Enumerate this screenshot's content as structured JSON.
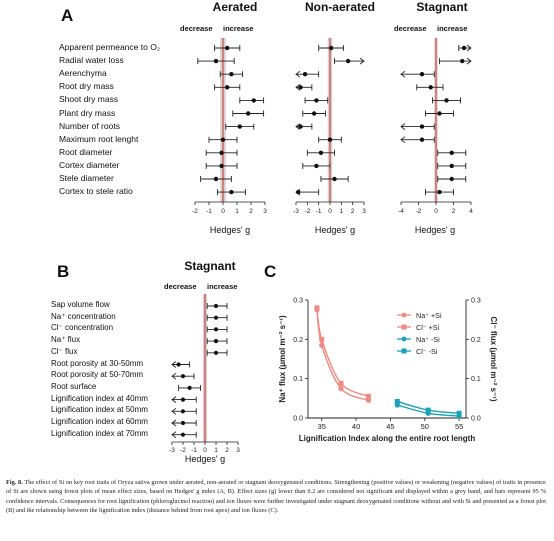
{
  "panel_a": {
    "letter": "A",
    "direction": {
      "decrease": "decrease",
      "increase": "increase"
    },
    "xlabel": "Hedges' g",
    "ticks": [
      "-2",
      "-1",
      "0",
      "1",
      "2",
      "3"
    ],
    "traits": [
      "Apparent permeance to O₂",
      "Radial water loss",
      "Aerenchyma",
      "Root dry mass",
      "Shoot dry mass",
      "Plant dry mass",
      "Number of roots",
      "Maximum root lenght",
      "Root diameter",
      "Cortex diameter",
      "Stele diameter",
      "Cortex to stele ratio"
    ],
    "facets": [
      {
        "title": "Aerated",
        "ticks": [
          "-2",
          "-1",
          "0",
          "1",
          "2",
          "3"
        ],
        "xmin": -2,
        "xmax": 3,
        "rows": [
          {
            "g": 0.3,
            "lo": -0.6,
            "hi": 1.2
          },
          {
            "g": -0.5,
            "lo": -1.8,
            "hi": 0.8
          },
          {
            "g": 0.6,
            "lo": -0.2,
            "hi": 1.4
          },
          {
            "g": 0.3,
            "lo": -0.6,
            "hi": 1.2
          },
          {
            "g": 2.2,
            "lo": 1.2,
            "hi": 2.9
          },
          {
            "g": 1.8,
            "lo": 0.7,
            "hi": 2.9
          },
          {
            "g": 1.2,
            "lo": 0.2,
            "hi": 2.2
          },
          {
            "g": 0.0,
            "lo": -1.0,
            "hi": 1.0
          },
          {
            "g": -0.1,
            "lo": -1.2,
            "hi": 1.0
          },
          {
            "g": -0.1,
            "lo": -1.2,
            "hi": 1.0
          },
          {
            "g": -0.5,
            "lo": -1.6,
            "hi": 0.6
          },
          {
            "g": 0.6,
            "lo": -0.4,
            "hi": 1.6
          }
        ]
      },
      {
        "title": "Non-aerated",
        "ticks": [
          "-3",
          "-2",
          "-1",
          "0",
          "1",
          "2",
          "3"
        ],
        "xmin": -3,
        "xmax": 3,
        "rows": [
          {
            "g": 0.1,
            "lo": -1.0,
            "hi": 1.2
          },
          {
            "g": 1.6,
            "lo": 0.4,
            "hi": 3.0
          },
          {
            "g": -2.2,
            "lo": -3.0,
            "hi": -1.0
          },
          {
            "g": -2.6,
            "lo": -3.0,
            "hi": -1.6
          },
          {
            "g": -1.2,
            "lo": -2.2,
            "hi": -0.2
          },
          {
            "g": -1.4,
            "lo": -2.4,
            "hi": -0.4
          },
          {
            "g": -2.6,
            "lo": -3.0,
            "hi": -1.6
          },
          {
            "g": 0.0,
            "lo": -1.0,
            "hi": 1.0
          },
          {
            "g": -0.8,
            "lo": -2.0,
            "hi": 0.4
          },
          {
            "g": -1.2,
            "lo": -2.4,
            "hi": 0.0
          },
          {
            "g": 0.4,
            "lo": -0.8,
            "hi": 1.6
          },
          {
            "g": -2.8,
            "lo": -3.0,
            "hi": -1.0
          }
        ]
      },
      {
        "title": "Stagnant",
        "ticks": [
          "-4",
          "-2",
          "0",
          "2",
          "4"
        ],
        "xmin": -4,
        "xmax": 4,
        "rows": [
          {
            "g": 3.2,
            "lo": 2.6,
            "hi": 4.0
          },
          {
            "g": 3.0,
            "lo": 0.4,
            "hi": 4.0
          },
          {
            "g": -1.6,
            "lo": -4.0,
            "hi": -0.2
          },
          {
            "g": -0.6,
            "lo": -2.2,
            "hi": 0.8
          },
          {
            "g": 1.2,
            "lo": -0.4,
            "hi": 2.8
          },
          {
            "g": 0.4,
            "lo": -1.2,
            "hi": 2.0
          },
          {
            "g": -1.6,
            "lo": -4.0,
            "hi": -0.2
          },
          {
            "g": -1.6,
            "lo": -4.0,
            "hi": -0.2
          },
          {
            "g": 1.8,
            "lo": 0.2,
            "hi": 3.4
          },
          {
            "g": 1.8,
            "lo": 0.2,
            "hi": 3.4
          },
          {
            "g": 1.8,
            "lo": 0.2,
            "hi": 3.4
          },
          {
            "g": 0.4,
            "lo": -1.2,
            "hi": 2.0
          }
        ]
      }
    ]
  },
  "panel_b": {
    "letter": "B",
    "title": "Stagnant",
    "direction": {
      "decrease": "decrease",
      "increase": "increase"
    },
    "xlabel": "Hedges' g",
    "ticks": [
      "-3",
      "-2",
      "-1",
      "0",
      "1",
      "2",
      "3"
    ],
    "xmin": -3,
    "xmax": 3,
    "traits": [
      "Sap volume flow",
      "Na⁺ concentration",
      "Cl⁻ concentration",
      "Na⁺ flux",
      "Cl⁻ flux",
      "Root porosity at 30-50mm",
      "Root porosity at 50-70mm",
      "Root surface",
      "Lignification index at 40mm",
      "Lignification index at 50mm",
      "Lignification index at 60mm",
      "Lignification index at 70mm"
    ],
    "rows": [
      {
        "g": 1.0,
        "lo": 0.2,
        "hi": 2.0
      },
      {
        "g": 1.0,
        "lo": 0.2,
        "hi": 2.0
      },
      {
        "g": 1.0,
        "lo": 0.2,
        "hi": 2.0
      },
      {
        "g": 1.0,
        "lo": 0.2,
        "hi": 2.0
      },
      {
        "g": 1.0,
        "lo": 0.2,
        "hi": 2.0
      },
      {
        "g": -2.4,
        "lo": -3.0,
        "hi": -1.4
      },
      {
        "g": -2.0,
        "lo": -3.0,
        "hi": -1.0
      },
      {
        "g": -1.4,
        "lo": -2.4,
        "hi": -0.4
      },
      {
        "g": -2.0,
        "lo": -3.0,
        "hi": -0.8
      },
      {
        "g": -2.0,
        "lo": -3.0,
        "hi": -0.8
      },
      {
        "g": -2.0,
        "lo": -3.0,
        "hi": -0.8
      },
      {
        "g": -2.0,
        "lo": -3.0,
        "hi": -0.8
      }
    ]
  },
  "panel_c": {
    "letter": "C",
    "xlabel": "Lignification Index along the entire root length",
    "ylabel_left": "Na⁺ flux (μmol m⁻² s⁻¹)",
    "ylabel_right": "Cl⁻ flux (μmol m⁻² s⁻¹)",
    "xticks": [
      "35",
      "40",
      "45",
      "50",
      "55"
    ],
    "yticks_left": [
      "0.0",
      "0.1",
      "0.2",
      "0.3"
    ],
    "yticks_right": [
      "0.0",
      "0.1",
      "0.2",
      "0.3"
    ],
    "xlim": [
      33,
      56
    ],
    "ylim": [
      0,
      0.3
    ],
    "legend": [
      {
        "label": "Na⁺ +Si",
        "marker": "circle",
        "color": "#f08a80"
      },
      {
        "label": "Cl⁻ +Si",
        "marker": "square",
        "color": "#f08a80"
      },
      {
        "label": "Na⁺ -Si",
        "marker": "circle",
        "color": "#1aa3b8"
      },
      {
        "label": "Cl⁻ -Si",
        "marker": "square",
        "color": "#1aa3b8"
      }
    ]
  },
  "chart_data": [
    {
      "type": "scatter",
      "title": "",
      "xlabel": "Lignification Index along the entire root length",
      "ylabel": "Na⁺ flux (μmol m⁻² s⁻¹)",
      "xlim": [
        33,
        56
      ],
      "ylim": [
        0,
        0.3
      ],
      "series": [
        {
          "name": "Na⁺ +Si",
          "x": [
            34.3,
            35.0,
            37.8,
            41.8
          ],
          "y": [
            0.275,
            0.185,
            0.075,
            0.045
          ]
        },
        {
          "name": "Cl⁻ +Si",
          "x": [
            34.3,
            35.0,
            37.8,
            41.8
          ],
          "y": [
            0.28,
            0.2,
            0.088,
            0.055
          ]
        },
        {
          "name": "Na⁺ -Si",
          "x": [
            46.0,
            50.5,
            55.0
          ],
          "y": [
            0.033,
            0.012,
            0.005
          ]
        },
        {
          "name": "Cl⁻ -Si",
          "x": [
            46.0,
            50.5,
            55.0
          ],
          "y": [
            0.042,
            0.02,
            0.012
          ]
        }
      ]
    }
  ],
  "caption": {
    "label": "Fig. 8.",
    "text": "The effect of Si on key root traits of Oryza sativa grown under aerated, non-aerated or stagnant deoxygenated conditions. Strengthening (positive values) or weakening (negative values) of traits in presence of Si are shown using forest plots of mean effect sizes, based on Hedges' g index (A, B). Effect sizes (g) lower than 0.2 are considered not significant and displayed within a grey band, and bars represent 95 % confidence intervals. Consequences for root lignification (phloroglucinol reaction) and ion fluxes were further investigated under stagnant deoxygenated conditions without and with Si and presented as a forest plot (B) and the relationship between the lignification index (distance behind from root apex) and ion fluxes (C)."
  }
}
